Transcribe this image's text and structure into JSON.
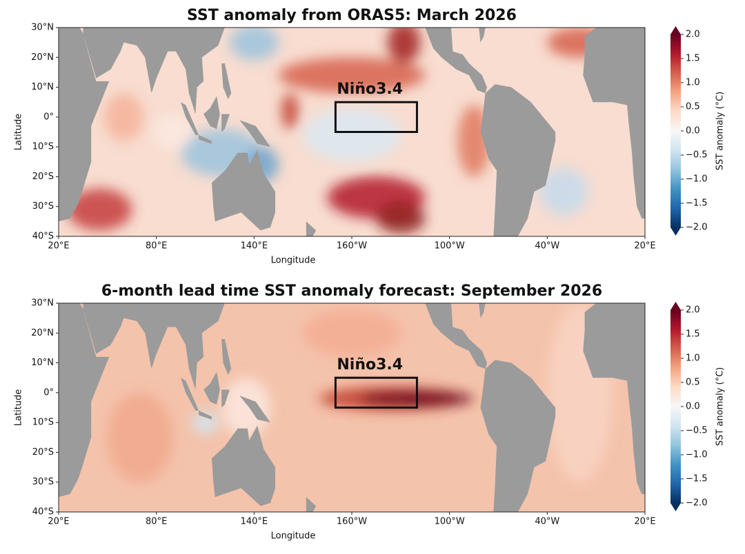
{
  "panels": [
    {
      "title": "SST anomaly from ORAS5: March 2026",
      "xlabel": "Longitude",
      "ylabel": "Latitude",
      "xlim": [
        20,
        380
      ],
      "ylim": [
        -40,
        30
      ],
      "xticks": [
        {
          "value": 20,
          "label": "20°E"
        },
        {
          "value": 80,
          "label": "80°E"
        },
        {
          "value": 140,
          "label": "140°E"
        },
        {
          "value": 200,
          "label": "160°W"
        },
        {
          "value": 260,
          "label": "100°W"
        },
        {
          "value": 320,
          "label": "40°W"
        },
        {
          "value": 380,
          "label": "20°E"
        }
      ],
      "yticks": [
        {
          "value": 30,
          "label": "30°N"
        },
        {
          "value": 20,
          "label": "20°N"
        },
        {
          "value": 10,
          "label": "10°N"
        },
        {
          "value": 0,
          "label": "0°"
        },
        {
          "value": -10,
          "label": "10°S"
        },
        {
          "value": -20,
          "label": "20°S"
        },
        {
          "value": -30,
          "label": "30°S"
        },
        {
          "value": -40,
          "label": "40°S"
        }
      ],
      "region": {
        "label": "Niño3.4",
        "lon": [
          190,
          240
        ],
        "lat": [
          -5,
          5
        ]
      },
      "colorbar": {
        "label": "SST anomaly (°C)",
        "ticks": [
          {
            "value": 2,
            "label": "2.0"
          },
          1.5,
          {
            "value": 1,
            "label": "1.0"
          },
          0.5,
          {
            "value": 0,
            "label": "0.0"
          },
          {
            "value": -0.5,
            "label": "−0.5"
          },
          {
            "value": -1,
            "label": "−1.0"
          },
          {
            "value": -1.5,
            "label": "−1.5"
          },
          {
            "value": -2,
            "label": "−2.0"
          }
        ]
      }
    },
    {
      "title": "6-month lead time SST anomaly forecast: September 2026",
      "xlabel": "Longitude",
      "ylabel": "Latitude",
      "xlim": [
        20,
        380
      ],
      "ylim": [
        -40,
        30
      ],
      "xticks": [
        {
          "value": 20,
          "label": "20°E"
        },
        {
          "value": 80,
          "label": "80°E"
        },
        {
          "value": 140,
          "label": "140°E"
        },
        {
          "value": 200,
          "label": "160°W"
        },
        {
          "value": 260,
          "label": "100°W"
        },
        {
          "value": 320,
          "label": "40°W"
        },
        {
          "value": 380,
          "label": "20°E"
        }
      ],
      "yticks": [
        {
          "value": 30,
          "label": "30°N"
        },
        {
          "value": 20,
          "label": "20°N"
        },
        {
          "value": 10,
          "label": "10°N"
        },
        {
          "value": 0,
          "label": "0°"
        },
        {
          "value": -10,
          "label": "10°S"
        },
        {
          "value": -20,
          "label": "20°S"
        },
        {
          "value": -30,
          "label": "30°S"
        },
        {
          "value": -40,
          "label": "40°S"
        }
      ],
      "region": {
        "label": "Niño3.4",
        "lon": [
          190,
          240
        ],
        "lat": [
          -5,
          5
        ]
      },
      "colorbar": {
        "label": "SST anomaly (°C)",
        "ticks": [
          {
            "value": 2,
            "label": "2.0"
          },
          1.5,
          {
            "value": 1,
            "label": "1.0"
          },
          0.5,
          {
            "value": 0,
            "label": "0.0"
          },
          {
            "value": -0.5,
            "label": "−0.5"
          },
          {
            "value": -1,
            "label": "−1.0"
          },
          {
            "value": -1.5,
            "label": "−1.5"
          },
          {
            "value": -2,
            "label": "−2.0"
          }
        ]
      }
    }
  ]
}
